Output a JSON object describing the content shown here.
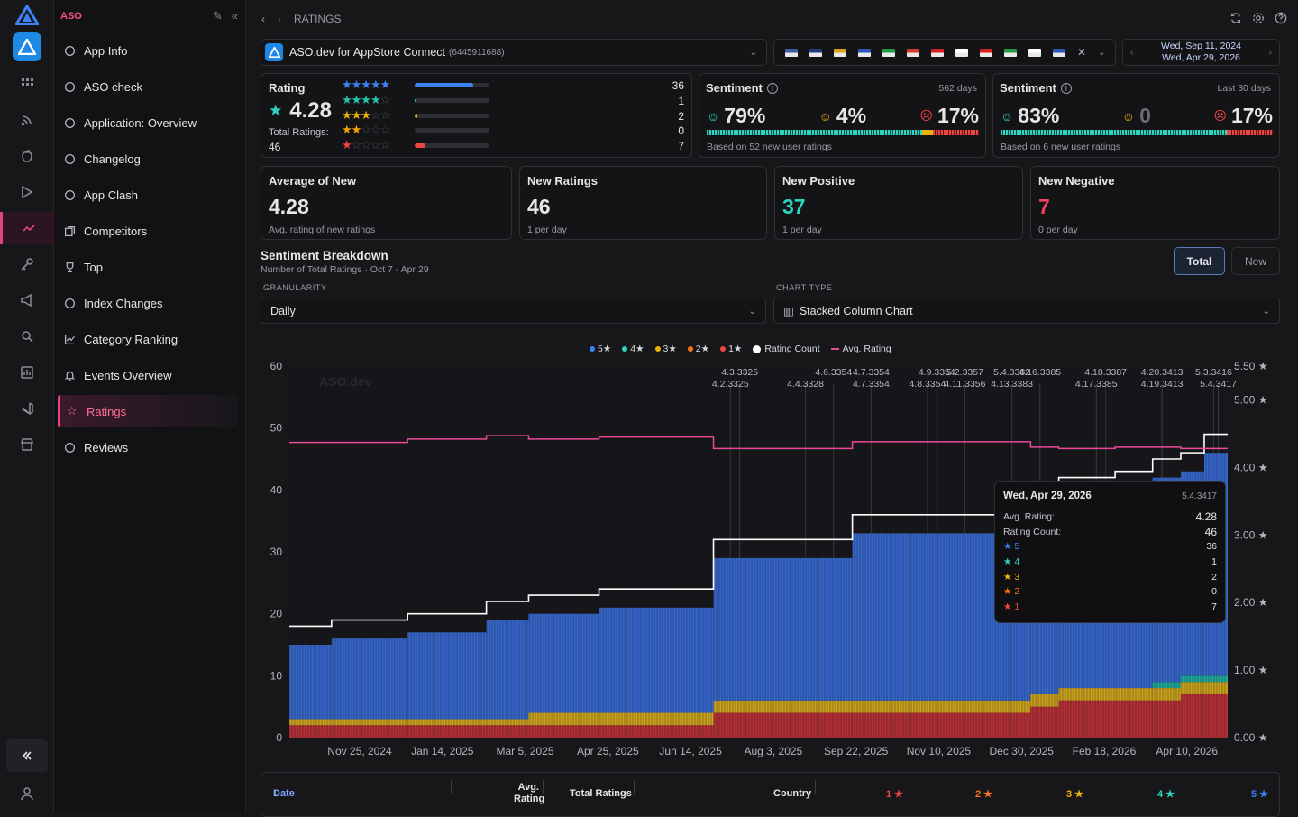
{
  "app": {
    "brand": "ASO"
  },
  "sidebar": {
    "items": [
      {
        "label": "App Info",
        "icon": "info-icon"
      },
      {
        "label": "ASO check",
        "icon": "check-circle-icon"
      },
      {
        "label": "Application: Overview",
        "icon": "pie-chart-icon"
      },
      {
        "label": "Changelog",
        "icon": "history-icon"
      },
      {
        "label": "App Clash",
        "icon": "swords-icon"
      },
      {
        "label": "Competitors",
        "icon": "copy-icon"
      },
      {
        "label": "Top",
        "icon": "trophy-icon"
      },
      {
        "label": "Index Changes",
        "icon": "tag-icon"
      },
      {
        "label": "Category Ranking",
        "icon": "line-chart-icon"
      },
      {
        "label": "Events Overview",
        "icon": "bell-icon"
      },
      {
        "label": "Ratings",
        "icon": "star-icon"
      },
      {
        "label": "Reviews",
        "icon": "message-icon"
      }
    ],
    "active": "Ratings"
  },
  "header": {
    "breadcrumb": "RATINGS"
  },
  "app_select": {
    "name": "ASO.dev for AppStore Connect",
    "id": "(6445911688)"
  },
  "date_range": {
    "start": "Wed, Sep 11, 2024",
    "end": "Wed, Apr 29, 2026"
  },
  "flags": [
    "#3c5aa6",
    "#1f3a7a",
    "#d9a21b",
    "#2e54b8",
    "#1f9a42",
    "#d43b2a",
    "#d42020",
    "#ffffff",
    "#d42020",
    "#239b45",
    "#ffffff",
    "#2e54b8"
  ],
  "rating_card": {
    "title": "Rating",
    "value": "4.28",
    "total_label": "Total Ratings:",
    "total": "46",
    "rows": [
      {
        "stars": 5,
        "count": "36",
        "fraction": 0.78,
        "color": "#3b82f6"
      },
      {
        "stars": 4,
        "count": "1",
        "fraction": 0.02,
        "color": "#22c3a6"
      },
      {
        "stars": 3,
        "count": "2",
        "fraction": 0.04,
        "color": "#eab308"
      },
      {
        "stars": 2,
        "count": "0",
        "fraction": 0,
        "color": "#f59e0b"
      },
      {
        "stars": 1,
        "count": "7",
        "fraction": 0.15,
        "color": "#ef4444"
      }
    ]
  },
  "sentiment_all": {
    "title": "Sentiment",
    "period": "562 days",
    "positive": "79%",
    "neutral": "4%",
    "negative": "17%",
    "note": "Based on 52 new user ratings"
  },
  "sentiment_30": {
    "title": "Sentiment",
    "period": "Last 30 days",
    "positive": "83%",
    "neutral": "0",
    "negative": "17%",
    "note": "Based on 6 new user ratings"
  },
  "stats": [
    {
      "title": "Average of New",
      "value": "4.28",
      "sub": "Avg. rating of new ratings",
      "color": "#e6e6e9"
    },
    {
      "title": "New Ratings",
      "value": "46",
      "sub": "1 per day",
      "color": "#e6e6e9"
    },
    {
      "title": "New Positive",
      "value": "37",
      "sub": "1 per day",
      "color": "#2dd4bf"
    },
    {
      "title": "New Negative",
      "value": "7",
      "sub": "0 per day",
      "color": "#f43f5e"
    }
  ],
  "breakdown": {
    "title": "Sentiment Breakdown",
    "subtitle": "Number of Total Ratings · Oct 7 - Apr 29",
    "toggle": [
      "Total",
      "New"
    ],
    "granularity_label": "GRANULARITY",
    "granularity": "Daily",
    "chart_type_label": "CHART TYPE",
    "chart_type": "Stacked Column Chart"
  },
  "legend": [
    {
      "label": "5★",
      "color": "#3b82f6"
    },
    {
      "label": "4★",
      "color": "#2dd4bf"
    },
    {
      "label": "3★",
      "color": "#eab308"
    },
    {
      "label": "2★",
      "color": "#f97316"
    },
    {
      "label": "1★",
      "color": "#ef4444"
    },
    {
      "label": "Rating Count",
      "color": "#ffffff"
    },
    {
      "label": "Avg. Rating",
      "color": "#ec4899"
    }
  ],
  "watermark": "ASO.dev",
  "chart_data": {
    "type": "bar",
    "stacked": true,
    "xlabels": [
      "Nov 25, 2024",
      "Jan 14, 2025",
      "Mar 5, 2025",
      "Apr 25, 2025",
      "Jun 14, 2025",
      "Aug 3, 2025",
      "Sep 22, 2025",
      "Nov 10, 2025",
      "Dec 30, 2025",
      "Feb 18, 2026",
      "Apr 10, 2026"
    ],
    "ylim": [
      0,
      60
    ],
    "yticks": [
      0,
      10,
      20,
      30,
      40,
      50,
      60
    ],
    "y2lim": [
      0,
      5.5
    ],
    "y2ticks": [
      "0.00 ★",
      "1.00 ★",
      "2.00 ★",
      "3.00 ★",
      "4.00 ★",
      "5.00 ★",
      "5.50 ★"
    ],
    "steps": [
      {
        "f": 0.0,
        "s5": 12,
        "s4": 0,
        "s3": 1,
        "s2": 0,
        "s1": 2,
        "avg": 4.37
      },
      {
        "f": 0.045,
        "s5": 13,
        "s4": 0,
        "s3": 1,
        "s2": 0,
        "s1": 2,
        "avg": 4.37
      },
      {
        "f": 0.126,
        "s5": 14,
        "s4": 0,
        "s3": 1,
        "s2": 0,
        "s1": 2,
        "avg": 4.42
      },
      {
        "f": 0.21,
        "s5": 16,
        "s4": 0,
        "s3": 1,
        "s2": 0,
        "s1": 2,
        "avg": 4.47
      },
      {
        "f": 0.255,
        "s5": 16,
        "s4": 0,
        "s3": 2,
        "s2": 0,
        "s1": 2,
        "avg": 4.42
      },
      {
        "f": 0.33,
        "s5": 17,
        "s4": 0,
        "s3": 2,
        "s2": 0,
        "s1": 2,
        "avg": 4.45
      },
      {
        "f": 0.452,
        "s5": 23,
        "s4": 0,
        "s3": 2,
        "s2": 0,
        "s1": 4,
        "avg": 4.28
      },
      {
        "f": 0.6,
        "s5": 27,
        "s4": 0,
        "s3": 2,
        "s2": 0,
        "s1": 4,
        "avg": 4.38
      },
      {
        "f": 0.77,
        "s5": 29,
        "s4": 0,
        "s3": 2,
        "s2": 0,
        "s1": 4,
        "avg": 4.38
      },
      {
        "f": 0.79,
        "s5": 30,
        "s4": 0,
        "s3": 2,
        "s2": 0,
        "s1": 5,
        "avg": 4.3
      },
      {
        "f": 0.82,
        "s5": 31,
        "s4": 0,
        "s3": 2,
        "s2": 0,
        "s1": 6,
        "avg": 4.28
      },
      {
        "f": 0.88,
        "s5": 32,
        "s4": 0,
        "s3": 2,
        "s2": 0,
        "s1": 6,
        "avg": 4.3
      },
      {
        "f": 0.92,
        "s5": 33,
        "s4": 1,
        "s3": 2,
        "s2": 0,
        "s1": 6,
        "avg": 4.3
      },
      {
        "f": 0.95,
        "s5": 33,
        "s4": 1,
        "s3": 2,
        "s2": 0,
        "s1": 7,
        "avg": 4.28
      },
      {
        "f": 0.975,
        "s5": 36,
        "s4": 1,
        "s3": 2,
        "s2": 0,
        "s1": 7,
        "avg": 4.28
      }
    ],
    "version_labels": [
      {
        "f": 0.48,
        "row": 0,
        "text": "4.3.3325"
      },
      {
        "f": 0.47,
        "row": 1,
        "text": "4.2.3325"
      },
      {
        "f": 0.55,
        "row": 1,
        "text": "4.4.3328"
      },
      {
        "f": 0.58,
        "row": 0,
        "text": "4.6.3354"
      },
      {
        "f": 0.62,
        "row": 0,
        "text": "4.7.3354"
      },
      {
        "f": 0.62,
        "row": 1,
        "text": "4.7.3354"
      },
      {
        "f": 0.68,
        "row": 1,
        "text": "4.8.3354"
      },
      {
        "f": 0.69,
        "row": 0,
        "text": "4.9.3354"
      },
      {
        "f": 0.72,
        "row": 0,
        "text": "5.2.3357"
      },
      {
        "f": 0.72,
        "row": 1,
        "text": "4.11.3356"
      },
      {
        "f": 0.77,
        "row": 0,
        "text": "5.4.3382"
      },
      {
        "f": 0.77,
        "row": 1,
        "text": "4.13.3383"
      },
      {
        "f": 0.8,
        "row": 0,
        "text": "4.16.3385"
      },
      {
        "f": 0.87,
        "row": 0,
        "text": "4.18.3387"
      },
      {
        "f": 0.86,
        "row": 1,
        "text": "4.17.3385"
      },
      {
        "f": 0.93,
        "row": 0,
        "text": "4.20.3413"
      },
      {
        "f": 0.93,
        "row": 1,
        "text": "4.19.3413"
      },
      {
        "f": 0.985,
        "row": 0,
        "text": "5.3.3416"
      },
      {
        "f": 0.99,
        "row": 1,
        "text": "5.4.3417"
      }
    ]
  },
  "tooltip": {
    "date": "Wed, Apr 29, 2026",
    "version": "5.4.3417",
    "avg_label": "Avg. Rating:",
    "avg": "4.28",
    "count_label": "Rating Count:",
    "count": "46",
    "rows": [
      {
        "label": "5",
        "value": "36",
        "color": "#3b82f6"
      },
      {
        "label": "4",
        "value": "1",
        "color": "#2dd4bf"
      },
      {
        "label": "3",
        "value": "2",
        "color": "#eab308"
      },
      {
        "label": "2",
        "value": "0",
        "color": "#f97316"
      },
      {
        "label": "1",
        "value": "7",
        "color": "#ef4444"
      }
    ]
  },
  "table": {
    "headers": [
      "Date",
      "Avg. Rating",
      "Total Ratings",
      "Country",
      "1 ★",
      "2 ★",
      "3 ★",
      "4 ★",
      "5 ★"
    ]
  }
}
